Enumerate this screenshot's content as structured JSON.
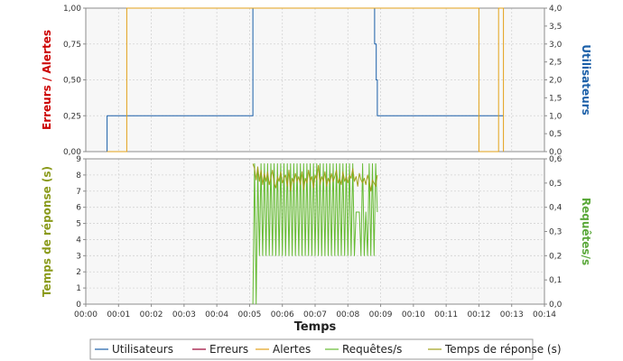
{
  "chart_data": [
    {
      "type": "line",
      "title": "",
      "ylabel": "Erreurs / Alertes",
      "ylabel_color": "#cc0000",
      "y2label": "Utilisateurs",
      "y2label_color": "#1a5fa8",
      "ylim": [
        0,
        1
      ],
      "y2lim": [
        0,
        4
      ],
      "xlim_seconds": [
        0,
        840
      ],
      "y_ticks": [
        "0,00",
        "0,25",
        "0,50",
        "0,75",
        "1,00"
      ],
      "y2_ticks": [
        "0,0",
        "0,5",
        "1,0",
        "1,5",
        "2,0",
        "2,5",
        "3,0",
        "3,5",
        "4,0"
      ],
      "grid": true,
      "series": [
        {
          "name": "Utilisateurs",
          "axis": "right",
          "color": "#1a5fa8",
          "x": [
            "00:00:39",
            "00:00:39",
            "00:05:06",
            "00:05:06",
            "00:08:49",
            "00:08:49",
            "00:08:52",
            "00:08:52",
            "00:08:54",
            "00:08:54",
            "00:12:45"
          ],
          "y": [
            0,
            1,
            1,
            4,
            4,
            3,
            3,
            2,
            2,
            1,
            1
          ]
        },
        {
          "name": "Alertes",
          "axis": "left",
          "color": "#e3a21a",
          "x": [
            "00:00:39",
            "00:01:15",
            "00:01:15",
            "00:12:00",
            "00:12:00",
            "00:12:36",
            "00:12:36",
            "00:12:45",
            "00:12:45"
          ],
          "y": [
            0,
            0,
            1,
            1,
            0,
            0,
            1,
            1,
            0
          ]
        },
        {
          "name": "Erreurs",
          "axis": "left",
          "color": "#990033",
          "x": [],
          "y": []
        }
      ]
    },
    {
      "type": "line",
      "title": "",
      "ylabel": "Temps de réponse (s)",
      "ylabel_color": "#8a9a1a",
      "y2label": "Requêtes/s",
      "y2label_color": "#5aa83a",
      "ylim": [
        0,
        9
      ],
      "y2lim": [
        0,
        0.6
      ],
      "xlabel": "Temps",
      "xlim_seconds": [
        0,
        840
      ],
      "x_ticks": [
        "00:00",
        "00:01",
        "00:02",
        "00:03",
        "00:04",
        "00:05",
        "00:06",
        "00:07",
        "00:08",
        "00:09",
        "00:10",
        "00:11",
        "00:12",
        "00:13",
        "00:14"
      ],
      "y_ticks": [
        "0",
        "1",
        "2",
        "3",
        "4",
        "5",
        "6",
        "7",
        "8",
        "9"
      ],
      "y2_ticks": [
        "0,0",
        "0,1",
        "0,2",
        "0,3",
        "0,4",
        "0,5",
        "0,6"
      ],
      "grid": true,
      "series": [
        {
          "name": "Requêtes/s",
          "axis": "right",
          "color": "#66bb33",
          "x": [
            "00:05:06",
            "00:05:09",
            "00:05:12",
            "00:05:15",
            "00:05:18",
            "00:05:21",
            "00:05:24",
            "00:05:27",
            "00:05:30",
            "00:05:33",
            "00:05:36",
            "00:05:39",
            "00:05:42",
            "00:05:45",
            "00:05:48",
            "00:05:51",
            "00:05:54",
            "00:05:57",
            "00:06:00",
            "00:06:03",
            "00:06:06",
            "00:06:09",
            "00:06:12",
            "00:06:15",
            "00:06:18",
            "00:06:21",
            "00:06:24",
            "00:06:27",
            "00:06:30",
            "00:06:33",
            "00:06:36",
            "00:06:39",
            "00:06:42",
            "00:06:45",
            "00:06:48",
            "00:06:51",
            "00:06:54",
            "00:06:57",
            "00:07:00",
            "00:07:03",
            "00:07:06",
            "00:07:09",
            "00:07:12",
            "00:07:15",
            "00:07:18",
            "00:07:21",
            "00:07:24",
            "00:07:27",
            "00:07:30",
            "00:07:33",
            "00:07:36",
            "00:07:39",
            "00:07:42",
            "00:07:45",
            "00:07:48",
            "00:07:51",
            "00:07:54",
            "00:07:57",
            "00:08:00",
            "00:08:03",
            "00:08:06",
            "00:08:09",
            "00:08:12",
            "00:08:15",
            "00:08:18",
            "00:08:21",
            "00:08:24",
            "00:08:27",
            "00:08:30",
            "00:08:33",
            "00:08:36",
            "00:08:39",
            "00:08:42",
            "00:08:45",
            "00:08:48",
            "00:08:51",
            "00:08:54"
          ],
          "y": [
            0,
            0.58,
            0,
            0.56,
            0.2,
            0.58,
            0.2,
            0.58,
            0.2,
            0.58,
            0.2,
            0.58,
            0.2,
            0.58,
            0.2,
            0.58,
            0.2,
            0.58,
            0.2,
            0.58,
            0.2,
            0.58,
            0.2,
            0.58,
            0.2,
            0.58,
            0.2,
            0.58,
            0.2,
            0.58,
            0.2,
            0.58,
            0.2,
            0.58,
            0.2,
            0.58,
            0.2,
            0.58,
            0.2,
            0.58,
            0.2,
            0.58,
            0.2,
            0.58,
            0.2,
            0.58,
            0.2,
            0.58,
            0.2,
            0.58,
            0.2,
            0.58,
            0.2,
            0.58,
            0.2,
            0.58,
            0.2,
            0.58,
            0.2,
            0.58,
            0.2,
            0.58,
            0.2,
            0.38,
            0.38,
            0.38,
            0.2,
            0.58,
            0.2,
            0.38,
            0.2,
            0.58,
            0.2,
            0.58,
            0.2,
            0.58,
            0.38
          ]
        },
        {
          "name": "Temps de réponse (s)",
          "axis": "left",
          "color": "#a0a01a",
          "x": [
            "00:05:06",
            "00:05:09",
            "00:05:12",
            "00:05:15",
            "00:05:18",
            "00:05:21",
            "00:05:24",
            "00:05:27",
            "00:05:30",
            "00:05:33",
            "00:05:36",
            "00:05:39",
            "00:05:42",
            "00:05:45",
            "00:05:48",
            "00:05:51",
            "00:05:54",
            "00:05:57",
            "00:06:00",
            "00:06:03",
            "00:06:06",
            "00:06:09",
            "00:06:12",
            "00:06:15",
            "00:06:18",
            "00:06:21",
            "00:06:24",
            "00:06:27",
            "00:06:30",
            "00:06:33",
            "00:06:36",
            "00:06:39",
            "00:06:42",
            "00:06:45",
            "00:06:48",
            "00:06:51",
            "00:06:54",
            "00:06:57",
            "00:07:00",
            "00:07:03",
            "00:07:06",
            "00:07:09",
            "00:07:12",
            "00:07:15",
            "00:07:18",
            "00:07:21",
            "00:07:24",
            "00:07:27",
            "00:07:30",
            "00:07:33",
            "00:07:36",
            "00:07:39",
            "00:07:42",
            "00:07:45",
            "00:07:48",
            "00:07:51",
            "00:07:54",
            "00:07:57",
            "00:08:00",
            "00:08:03",
            "00:08:06",
            "00:08:09",
            "00:08:12",
            "00:08:15",
            "00:08:18",
            "00:08:21",
            "00:08:24",
            "00:08:27",
            "00:08:30",
            "00:08:33",
            "00:08:36",
            "00:08:39",
            "00:08:42",
            "00:08:45",
            "00:08:48",
            "00:08:51",
            "00:08:54"
          ],
          "y": [
            8.7,
            8.4,
            7.7,
            8.5,
            7.6,
            8.3,
            7.4,
            8.1,
            7.6,
            8.2,
            7.4,
            7.8,
            8.3,
            7.5,
            7.2,
            7.9,
            7.6,
            8.2,
            7.5,
            7.8,
            8.0,
            7.3,
            8.3,
            7.0,
            7.8,
            7.5,
            8.1,
            7.6,
            7.9,
            7.4,
            8.2,
            7.1,
            7.8,
            7.5,
            8.3,
            7.6,
            7.9,
            7.2,
            8.0,
            7.7,
            8.6,
            7.4,
            7.9,
            7.6,
            8.2,
            7.3,
            7.8,
            7.5,
            8.1,
            7.6,
            7.9,
            8.3,
            7.5,
            7.8,
            7.4,
            8.2,
            7.6,
            7.9,
            7.5,
            8.0,
            7.8,
            8.4,
            7.6,
            7.9,
            7.3,
            8.1,
            7.7,
            7.5,
            7.8,
            7.4,
            8.0,
            7.6,
            7.0,
            7.7,
            7.5,
            7.3,
            8.0
          ]
        }
      ]
    }
  ],
  "legend": {
    "placement": "bottom",
    "items": [
      {
        "label": "Utilisateurs",
        "color": "#1a5fa8"
      },
      {
        "label": "Erreurs",
        "color": "#990033"
      },
      {
        "label": "Alertes",
        "color": "#e3a21a"
      },
      {
        "label": "Requêtes/s",
        "color": "#66bb33"
      },
      {
        "label": "Temps de réponse (s)",
        "color": "#a0a01a"
      }
    ]
  },
  "colors": {
    "plot_background": "#f7f7f7",
    "grid": "#d4d4d4",
    "axis": "#8c8c8c"
  }
}
